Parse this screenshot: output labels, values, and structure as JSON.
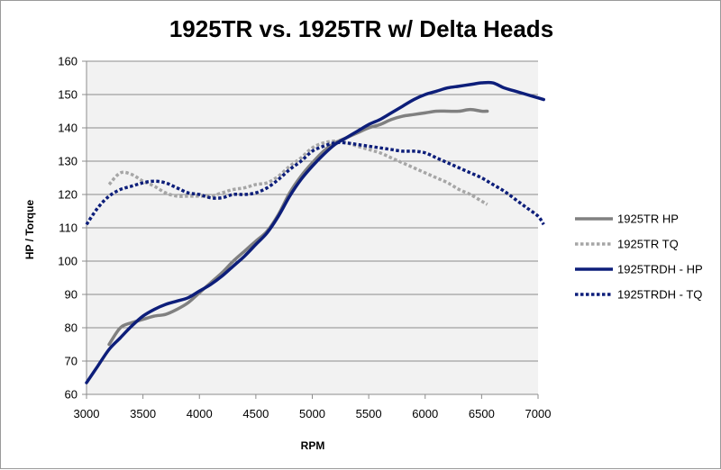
{
  "chart_data": {
    "type": "line",
    "title": "1925TR vs. 1925TR w/ Delta Heads",
    "xlabel": "RPM",
    "ylabel": "HP / Torque",
    "xlim": [
      3000,
      7000
    ],
    "ylim": [
      60,
      160
    ],
    "xticks": [
      3000,
      3500,
      4000,
      4500,
      5000,
      5500,
      6000,
      6500,
      7000
    ],
    "yticks": [
      60,
      70,
      80,
      90,
      100,
      110,
      120,
      130,
      140,
      150,
      160
    ],
    "grid": "horizontal",
    "plot_background": "#f2f2f2",
    "legend_position": "right",
    "series": [
      {
        "name": "1925TR  HP",
        "color": "#808080",
        "style": "solid",
        "x": [
          3200,
          3300,
          3400,
          3500,
          3600,
          3700,
          3800,
          3900,
          4000,
          4100,
          4200,
          4300,
          4400,
          4500,
          4600,
          4700,
          4800,
          4900,
          5000,
          5100,
          5200,
          5300,
          5400,
          5500,
          5600,
          5700,
          5800,
          5900,
          6000,
          6100,
          6200,
          6300,
          6400,
          6500,
          6550
        ],
        "y": [
          75,
          80,
          81.5,
          82.5,
          83.5,
          84,
          85.5,
          87.5,
          90.5,
          93.5,
          96.5,
          100,
          103,
          106,
          109,
          114,
          120.5,
          125.5,
          129.5,
          133,
          135.5,
          137,
          138.5,
          140,
          141,
          142.5,
          143.5,
          144,
          144.5,
          145,
          145,
          145,
          145.5,
          145,
          145
        ]
      },
      {
        "name": "1925TR TQ",
        "color": "#a6a6a6",
        "style": "dotted",
        "x": [
          3200,
          3300,
          3400,
          3500,
          3600,
          3700,
          3800,
          3900,
          4000,
          4100,
          4200,
          4300,
          4400,
          4500,
          4600,
          4700,
          4800,
          4900,
          5000,
          5100,
          5200,
          5300,
          5400,
          5500,
          5600,
          5700,
          5800,
          5900,
          6000,
          6100,
          6200,
          6300,
          6400,
          6500,
          6550
        ],
        "y": [
          123,
          126.5,
          126,
          124,
          122.5,
          120.5,
          119.5,
          119.5,
          119.5,
          119.5,
          120.5,
          121.5,
          122,
          123,
          123.5,
          125.5,
          128.5,
          131,
          134,
          135.5,
          136,
          135.5,
          134.5,
          133.5,
          132.5,
          131,
          129.5,
          128,
          126.5,
          125,
          123.5,
          121.5,
          120,
          118,
          117
        ]
      },
      {
        "name": "1925TRDH - HP",
        "color": "#0d1e7a",
        "style": "solid",
        "x": [
          3000,
          3100,
          3200,
          3300,
          3400,
          3500,
          3600,
          3700,
          3800,
          3900,
          4000,
          4100,
          4200,
          4300,
          4400,
          4500,
          4600,
          4700,
          4800,
          4900,
          5000,
          5100,
          5200,
          5300,
          5400,
          5500,
          5600,
          5700,
          5800,
          5900,
          6000,
          6100,
          6200,
          6300,
          6400,
          6500,
          6600,
          6700,
          6800,
          6900,
          7000,
          7050
        ],
        "y": [
          63.5,
          68.5,
          73.5,
          77,
          80.5,
          83.5,
          85.5,
          87,
          88,
          89,
          91,
          93,
          95.5,
          98.5,
          101.5,
          105,
          108.5,
          113.5,
          119.5,
          124.5,
          128.5,
          132,
          135,
          137,
          139,
          141,
          142.5,
          144.5,
          146.5,
          148.5,
          150,
          151,
          152,
          152.5,
          153,
          153.5,
          153.5,
          152,
          151,
          150,
          149,
          148.5
        ]
      },
      {
        "name": "1925TRDH - TQ",
        "color": "#0d1e7a",
        "style": "dotted",
        "x": [
          3000,
          3100,
          3200,
          3300,
          3400,
          3500,
          3600,
          3700,
          3800,
          3900,
          4000,
          4100,
          4200,
          4300,
          4400,
          4500,
          4600,
          4700,
          4800,
          4900,
          5000,
          5100,
          5200,
          5300,
          5400,
          5500,
          5600,
          5700,
          5800,
          5900,
          6000,
          6100,
          6200,
          6300,
          6400,
          6500,
          6600,
          6700,
          6800,
          6900,
          7000,
          7050
        ],
        "y": [
          111,
          116,
          119.5,
          121.5,
          122.5,
          123.5,
          124,
          123.5,
          122,
          120.5,
          120,
          119,
          119,
          120,
          120,
          120.5,
          122,
          124.5,
          127.5,
          130,
          133,
          134.5,
          135.5,
          135.5,
          135,
          134.5,
          134,
          133.5,
          133,
          133,
          132.5,
          131,
          129.5,
          128,
          126.5,
          125,
          123,
          121,
          118.5,
          116,
          113.5,
          111
        ]
      }
    ]
  }
}
